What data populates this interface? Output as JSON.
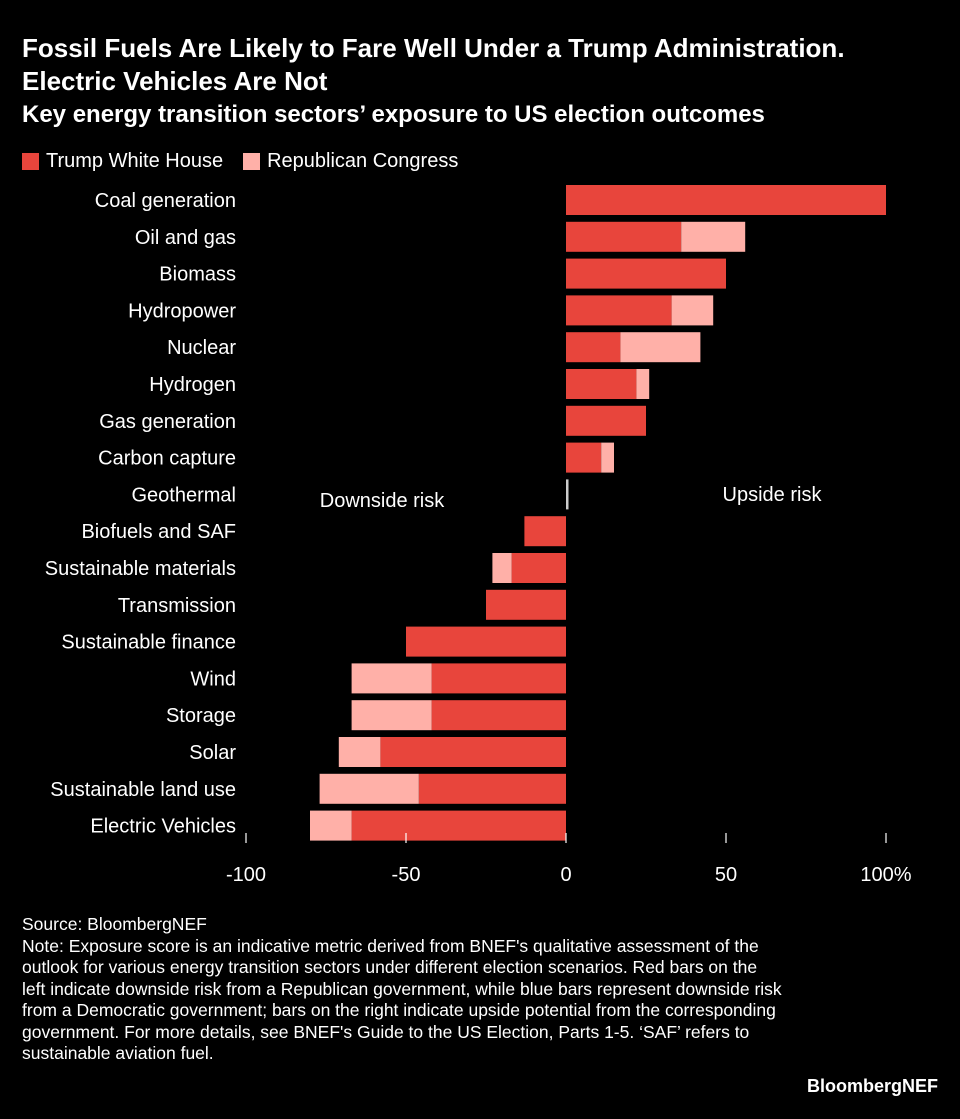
{
  "header": {
    "title": "Fossil Fuels Are Likely to Fare Well Under a Trump Administration. Electric Vehicles Are Not",
    "subtitle": "Key energy transition sectors’ exposure to US election outcomes"
  },
  "legend": {
    "trump": "Trump White House",
    "congress": "Republican Congress"
  },
  "colors": {
    "trump": "#e8453c",
    "congress": "#ffb0a8",
    "background": "#000000",
    "text": "#ffffff"
  },
  "chart_data": {
    "type": "bar",
    "orientation": "horizontal",
    "stacked": true,
    "categories": [
      "Coal generation",
      "Oil and gas",
      "Biomass",
      "Hydropower",
      "Nuclear",
      "Hydrogen",
      "Gas generation",
      "Carbon capture",
      "Geothermal",
      "Biofuels and SAF",
      "Sustainable materials",
      "Transmission",
      "Sustainable finance",
      "Wind",
      "Storage",
      "Solar",
      "Sustainable land use",
      "Electric Vehicles"
    ],
    "series": [
      {
        "name": "Trump White House",
        "values": [
          100,
          36,
          50,
          33,
          17,
          22,
          25,
          11,
          0.7,
          -13,
          -17,
          -25,
          -50,
          -42,
          -42,
          -58,
          -46,
          -67
        ]
      },
      {
        "name": "Republican Congress",
        "values": [
          0,
          20,
          0,
          13,
          25,
          4,
          0,
          4,
          0,
          0,
          -6,
          0,
          0,
          -25,
          -25,
          -13,
          -31,
          -13
        ]
      }
    ],
    "xlim": [
      -100,
      100
    ],
    "ticks": [
      -100,
      -50,
      0,
      50,
      100
    ],
    "tick_labels": [
      "-100",
      "-50",
      "0",
      "50",
      "100%"
    ],
    "annotations": {
      "downside": "Downside risk",
      "upside": "Upside risk"
    },
    "xlabel": "",
    "ylabel": ""
  },
  "footer": {
    "source": "Source: BloombergNEF",
    "note": "Note: Exposure score is an indicative metric derived from BNEF's qualitative assessment of the outlook for various energy transition sectors under different election scenarios. Red bars on the left indicate downside risk from a Republican government, while blue bars represent downside risk from a Democratic government; bars on the right indicate upside potential from the corresponding government. For more details, see BNEF's Guide to the US Election, Parts 1-5. ‘SAF’ refers to sustainable aviation fuel.",
    "brand": "BloombergNEF"
  }
}
